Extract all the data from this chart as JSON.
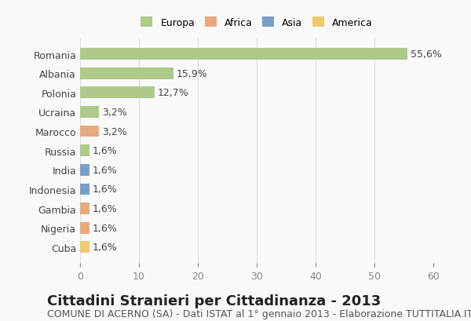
{
  "categories": [
    "Romania",
    "Albania",
    "Polonia",
    "Ucraina",
    "Marocco",
    "Russia",
    "India",
    "Indonesia",
    "Gambia",
    "Nigeria",
    "Cuba"
  ],
  "values": [
    55.6,
    15.9,
    12.7,
    3.2,
    3.2,
    1.6,
    1.6,
    1.6,
    1.6,
    1.6,
    1.6
  ],
  "labels": [
    "55,6%",
    "15,9%",
    "12,7%",
    "3,2%",
    "3,2%",
    "1,6%",
    "1,6%",
    "1,6%",
    "1,6%",
    "1,6%",
    "1,6%"
  ],
  "colors": [
    "#aec98a",
    "#aec98a",
    "#aec98a",
    "#aec98a",
    "#e8a97e",
    "#aec98a",
    "#7b9ec7",
    "#7b9ec7",
    "#e8a97e",
    "#e8a97e",
    "#f0c96e"
  ],
  "continent": [
    "Europa",
    "Europa",
    "Europa",
    "Europa",
    "Africa",
    "Europa",
    "Asia",
    "Asia",
    "Africa",
    "Africa",
    "America"
  ],
  "legend_labels": [
    "Europa",
    "Africa",
    "Asia",
    "America"
  ],
  "legend_colors": [
    "#aec98a",
    "#e8a97e",
    "#7b9ec7",
    "#f0c96e"
  ],
  "xlim": [
    0,
    60
  ],
  "xticks": [
    0,
    10,
    20,
    30,
    40,
    50,
    60
  ],
  "title": "Cittadini Stranieri per Cittadinanza - 2013",
  "subtitle": "COMUNE DI ACERNO (SA) - Dati ISTAT al 1° gennaio 2013 - Elaborazione TUTTITALIA.IT",
  "background_color": "#f9f9f9",
  "bar_height": 0.6,
  "title_fontsize": 13,
  "subtitle_fontsize": 9,
  "label_fontsize": 9,
  "tick_fontsize": 9
}
